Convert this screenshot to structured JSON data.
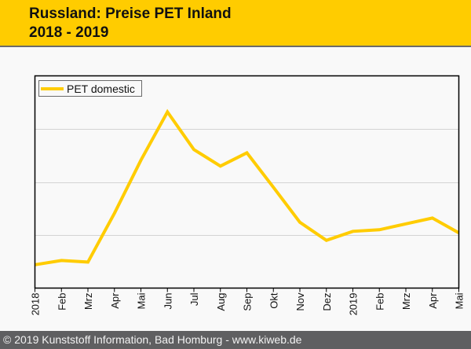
{
  "header": {
    "title": "Russland: Preise PET Inland",
    "subtitle": "2018 - 2019"
  },
  "footer": {
    "copyright": "© 2019 Kunststoff Information, Bad Homburg - www.kiweb.de"
  },
  "colors": {
    "header_bg": "#ffcc00",
    "footer_bg": "#5f5f61",
    "series": "#ffcc00",
    "grid": "#d4d4d4"
  },
  "chart_data": {
    "type": "line",
    "title": "Russland: Preise PET Inland",
    "subtitle": "2018 - 2019",
    "xlabel": "",
    "ylabel": "",
    "categories": [
      "2018",
      "Feb",
      "Mrz",
      "Apr",
      "Mai",
      "Jun",
      "Jul",
      "Aug",
      "Sep",
      "Okt",
      "Nov",
      "Dez",
      "2019",
      "Feb",
      "Mrz",
      "Apr",
      "Mai"
    ],
    "ylim": [
      0,
      4
    ],
    "y_ticks_unlabeled": [
      1,
      2,
      3
    ],
    "grid": true,
    "legend_position": "top-left",
    "series": [
      {
        "name": "PET domestic",
        "color": "#ffcc00",
        "values": [
          0.44,
          0.52,
          0.49,
          1.41,
          2.41,
          3.32,
          2.61,
          2.3,
          2.55,
          1.9,
          1.24,
          0.9,
          1.07,
          1.1,
          1.21,
          1.32,
          1.04
        ]
      }
    ]
  }
}
